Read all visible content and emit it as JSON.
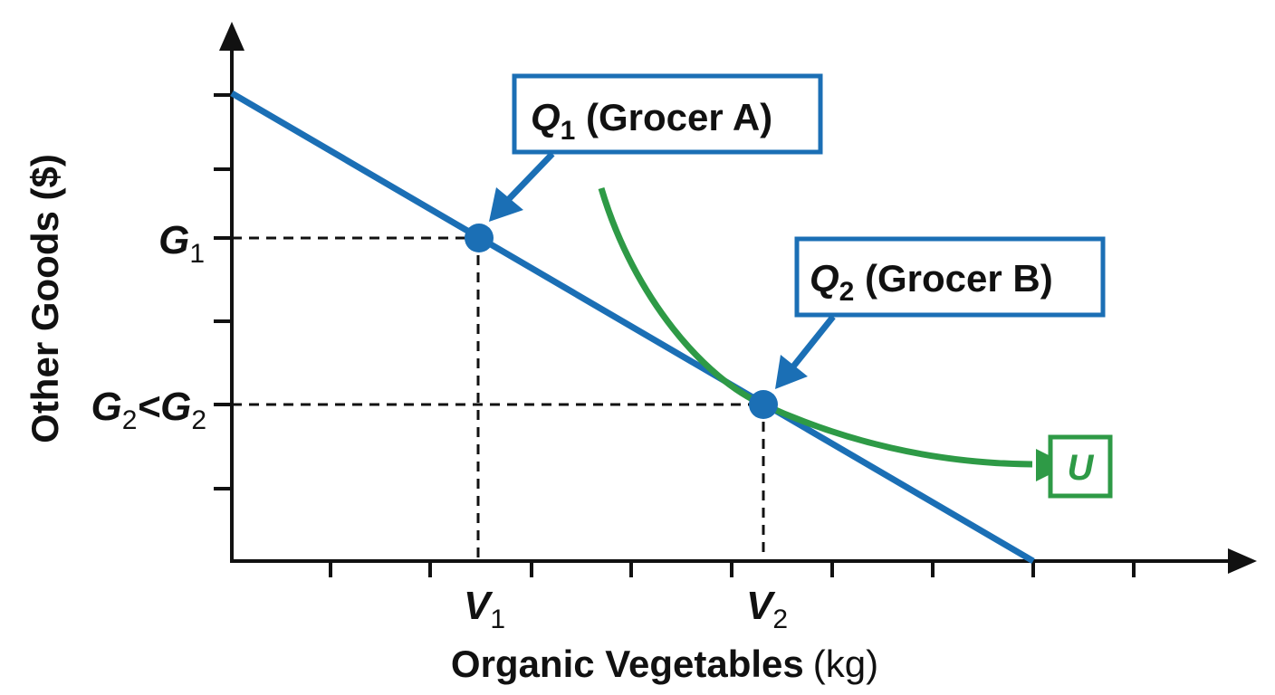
{
  "diagram": {
    "x_axis": {
      "title": "Organic Vegetables",
      "unit": "(kg)"
    },
    "y_axis": {
      "title": "Other Goods ($)"
    },
    "x_ticks": [
      {
        "main": "V",
        "sub": "1"
      },
      {
        "main": "V",
        "sub": "2"
      }
    ],
    "y_ticks": [
      {
        "parts": [
          {
            "t": "G",
            "sub": "1"
          }
        ]
      },
      {
        "parts": [
          {
            "t": "G",
            "sub": "2"
          },
          {
            "t": "<G",
            "sub": "2"
          }
        ]
      }
    ],
    "callouts": {
      "q1": {
        "q": "Q",
        "sub": "1",
        "rest": " (Grocer A)"
      },
      "q2": {
        "q": "Q",
        "sub": "2",
        "rest": " (Grocer B)"
      },
      "u": "U"
    },
    "colors": {
      "budget_line": "#1b6fb5",
      "indifference_curve": "#2e9a46",
      "axis": "#111111"
    }
  }
}
